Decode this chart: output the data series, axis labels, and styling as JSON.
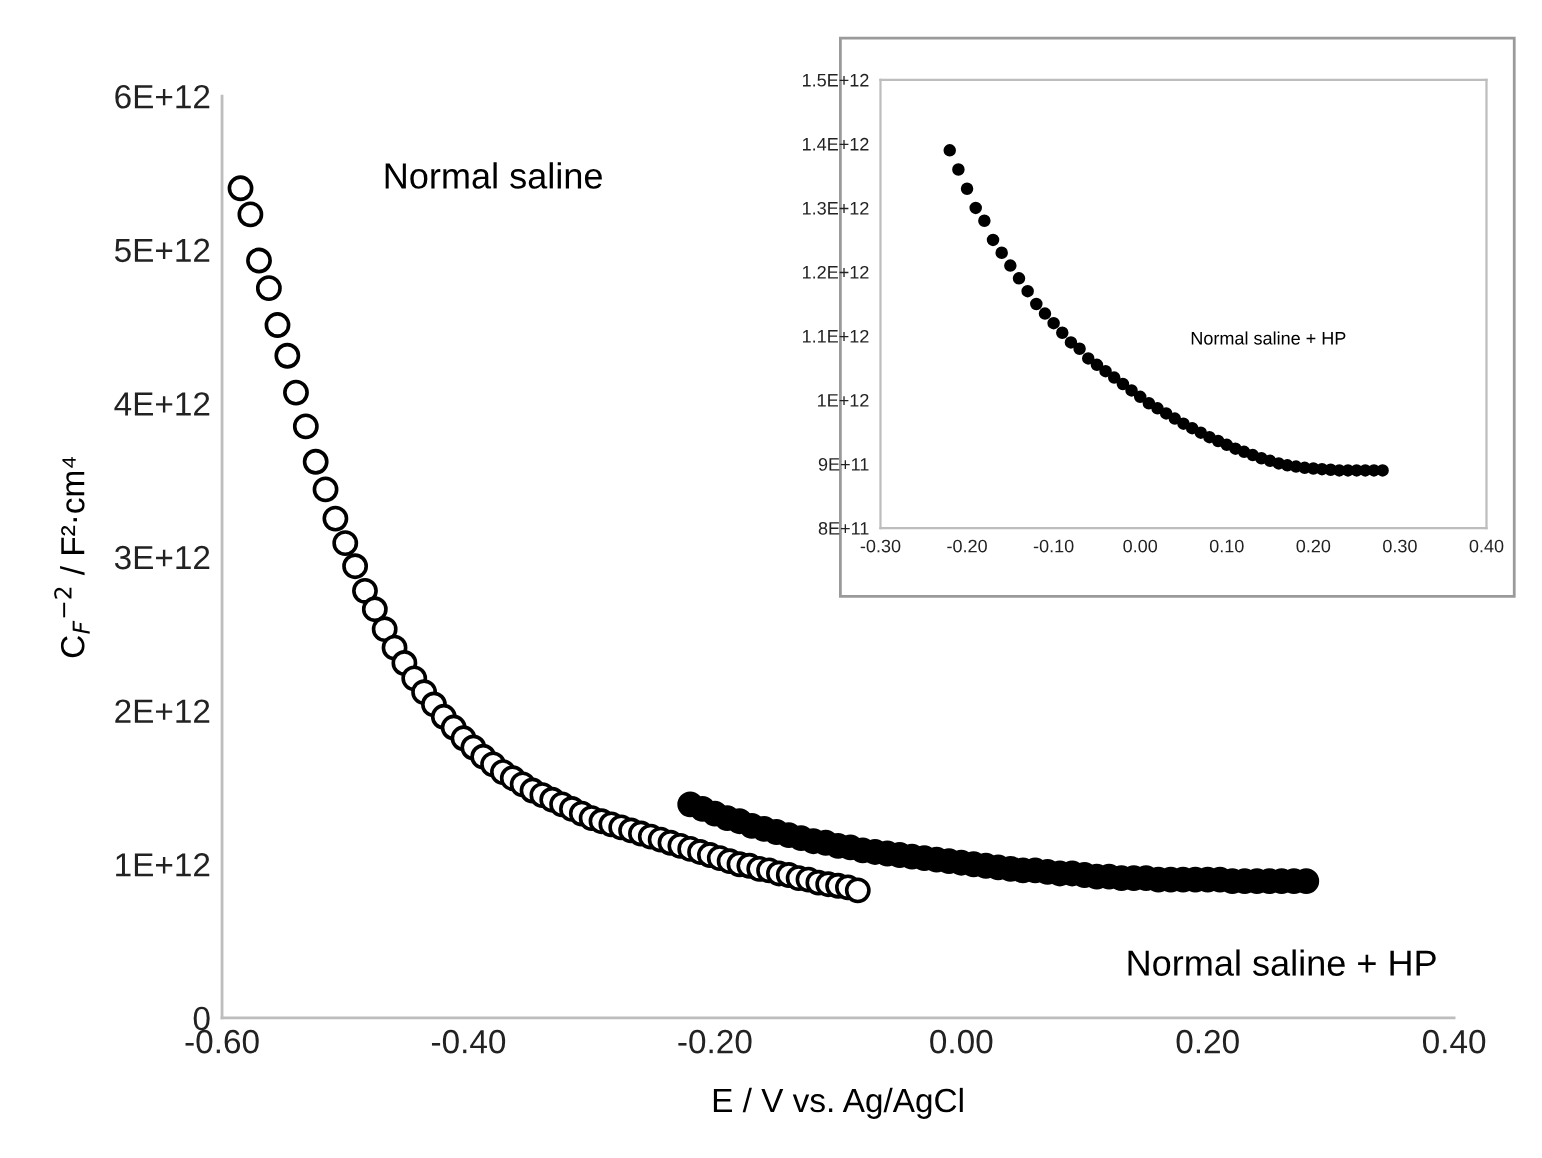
{
  "chart_data": [
    {
      "type": "scatter",
      "xlabel": "E / V vs. Ag/AgCl",
      "ylabel": "C$_{F}$$^{−2}$ / F²·cm⁴",
      "xlim": [
        -0.6,
        0.4
      ],
      "xticks": [
        {
          "value": -0.6,
          "label": "-0.60"
        },
        {
          "value": -0.4,
          "label": "-0.40"
        },
        {
          "value": -0.2,
          "label": "-0.20"
        },
        {
          "value": 0,
          "label": "0.00"
        },
        {
          "value": 0.2,
          "label": "0.20"
        },
        {
          "value": 0.4,
          "label": "0.40"
        }
      ],
      "ylim": [
        0,
        6000000000000.0
      ],
      "yticks": [
        0,
        {
          "value": 1000000000000.0,
          "label": "1E+12"
        },
        {
          "value": 2000000000000.0,
          "label": "2E+12"
        },
        {
          "value": 3000000000000.0,
          "label": "3E+12"
        },
        {
          "value": 4000000000000.0,
          "label": "4E+12"
        },
        {
          "value": 5000000000000.0,
          "label": "5E+12"
        },
        {
          "value": 6000000000000.0,
          "label": "6E+12"
        }
      ],
      "grid": false,
      "legend": false,
      "marker": "circle",
      "series": [
        {
          "color": "#ffffff",
          "x": [
            -0.585,
            -0.577,
            -0.57,
            -0.562,
            -0.555,
            -0.547,
            -0.54,
            -0.532,
            -0.524,
            -0.516,
            -0.508,
            -0.5,
            -0.492,
            -0.484,
            -0.476,
            -0.468,
            -0.46,
            -0.452,
            -0.444,
            -0.436,
            -0.428,
            -0.42,
            -0.412,
            -0.404,
            -0.396,
            -0.388,
            -0.38,
            -0.372,
            -0.364,
            -0.356,
            -0.348,
            -0.34,
            -0.332,
            -0.324,
            -0.316,
            -0.308,
            -0.3,
            -0.292,
            -0.284,
            -0.276,
            -0.268,
            -0.26,
            -0.252,
            -0.244,
            -0.236,
            -0.228,
            -0.22,
            -0.212,
            -0.204,
            -0.196,
            -0.188,
            -0.18,
            -0.172,
            -0.164,
            -0.156,
            -0.148,
            -0.14,
            -0.132,
            -0.124,
            -0.116,
            -0.108,
            -0.1,
            -0.092,
            -0.084
          ],
          "values": [
            5400000000000.0,
            5230000000000.0,
            4930000000000.0,
            4750000000000.0,
            4510000000000.0,
            4310000000000.0,
            4070000000000.0,
            3850000000000.0,
            3620000000000.0,
            3440000000000.0,
            3250000000000.0,
            3090000000000.0,
            2940000000000.0,
            2780000000000.0,
            2660000000000.0,
            2530000000000.0,
            2410000000000.0,
            2310000000000.0,
            2210000000000.0,
            2120000000000.0,
            2040000000000.0,
            1960000000000.0,
            1890000000000.0,
            1820000000000.0,
            1760000000000.0,
            1700000000000.0,
            1650000000000.0,
            1600000000000.0,
            1560000000000.0,
            1520000000000.0,
            1480000000000.0,
            1450000000000.0,
            1420000000000.0,
            1390000000000.0,
            1360000000000.0,
            1330000000000.0,
            1300000000000.0,
            1280000000000.0,
            1260000000000.0,
            1240000000000.0,
            1220000000000.0,
            1200000000000.0,
            1180000000000.0,
            1160000000000.0,
            1140000000000.0,
            1120000000000.0,
            1100000000000.0,
            1080000000000.0,
            1060000000000.0,
            1040000000000.0,
            1020000000000.0,
            1000000000000.0,
            990000000000.0,
            970000000000.0,
            960000000000.0,
            940000000000.0,
            930000000000.0,
            910000000000.0,
            900000000000.0,
            880000000000.0,
            870000000000.0,
            860000000000.0,
            850000000000.0,
            830000000000.0
          ]
        },
        {
          "color": "#000000",
          "x": [
            -0.22,
            -0.21,
            -0.2,
            -0.19,
            -0.18,
            -0.17,
            -0.16,
            -0.15,
            -0.14,
            -0.13,
            -0.12,
            -0.11,
            -0.1,
            -0.09,
            -0.08,
            -0.07,
            -0.06,
            -0.05,
            -0.04,
            -0.03,
            -0.02,
            -0.01,
            0,
            0.01,
            0.02,
            0.03,
            0.04,
            0.05,
            0.06,
            0.07,
            0.08,
            0.09,
            0.1,
            0.11,
            0.12,
            0.13,
            0.14,
            0.15,
            0.16,
            0.17,
            0.18,
            0.19,
            0.2,
            0.21,
            0.22,
            0.23,
            0.24,
            0.25,
            0.26,
            0.27,
            0.28
          ],
          "values": [
            1390000000000.0,
            1360000000000.0,
            1330000000000.0,
            1300000000000.0,
            1280000000000.0,
            1250000000000.0,
            1230000000000.0,
            1210000000000.0,
            1190000000000.0,
            1170000000000.0,
            1150000000000.0,
            1140000000000.0,
            1120000000000.0,
            1110000000000.0,
            1090000000000.0,
            1080000000000.0,
            1070000000000.0,
            1060000000000.0,
            1050000000000.0,
            1040000000000.0,
            1030000000000.0,
            1020000000000.0,
            1010000000000.0,
            1000000000000.0,
            990000000000.0,
            980000000000.0,
            970000000000.0,
            960000000000.0,
            960000000000.0,
            950000000000.0,
            940000000000.0,
            940000000000.0,
            930000000000.0,
            920000000000.0,
            920000000000.0,
            910000000000.0,
            910000000000.0,
            910000000000.0,
            900000000000.0,
            900000000000.0,
            900000000000.0,
            900000000000.0,
            900000000000.0,
            900000000000.0,
            890000000000.0,
            890000000000.0,
            890000000000.0,
            890000000000.0,
            890000000000.0,
            890000000000.0,
            890000000000.0
          ]
        }
      ],
      "annotations": [
        "Normal saline",
        "Normal saline + HP"
      ]
    },
    {
      "type": "scatter",
      "xlim": [
        -0.3,
        0.4
      ],
      "xticks": [
        {
          "value": -0.3,
          "label": "-0.30"
        },
        {
          "value": -0.2,
          "label": "-0.20"
        },
        {
          "value": -0.1,
          "label": "-0.10"
        },
        {
          "value": 0,
          "label": "0.00"
        },
        {
          "value": 0.1,
          "label": "0.10"
        },
        {
          "value": 0.2,
          "label": "0.20"
        },
        {
          "value": 0.3,
          "label": "0.30"
        },
        {
          "value": 0.4,
          "label": "0.40"
        }
      ],
      "ylim": [
        800000000000.0,
        1500000000000.0
      ],
      "yticks": [
        {
          "value": 800000000000.0,
          "label": "8E+11"
        },
        {
          "value": 900000000000.0,
          "label": "9E+11"
        },
        {
          "value": 1000000000000.0,
          "label": "1E+12"
        },
        {
          "value": 1100000000000.0,
          "label": "1.1E+12"
        },
        {
          "value": 1200000000000.0,
          "label": "1.2E+12"
        },
        {
          "value": 1300000000000.0,
          "label": "1.3E+12"
        },
        {
          "value": 1400000000000.0,
          "label": "1.4E+12"
        },
        {
          "value": 1500000000000.0,
          "label": "1.5E+12"
        }
      ],
      "grid": false,
      "legend": false,
      "marker": "circle",
      "series": [
        {
          "color": "#000000",
          "x": [
            -0.22,
            -0.21,
            -0.2,
            -0.19,
            -0.18,
            -0.17,
            -0.16,
            -0.15,
            -0.14,
            -0.13,
            -0.12,
            -0.11,
            -0.1,
            -0.09,
            -0.08,
            -0.07,
            -0.06,
            -0.05,
            -0.04,
            -0.03,
            -0.02,
            -0.01,
            0,
            0.01,
            0.02,
            0.03,
            0.04,
            0.05,
            0.06,
            0.07,
            0.08,
            0.09,
            0.1,
            0.11,
            0.12,
            0.13,
            0.14,
            0.15,
            0.16,
            0.17,
            0.18,
            0.19,
            0.2,
            0.21,
            0.22,
            0.23,
            0.24,
            0.25,
            0.26,
            0.27,
            0.28
          ],
          "values": [
            1390000000000.0,
            1360000000000.0,
            1330000000000.0,
            1300000000000.0,
            1280000000000.0,
            1250000000000.0,
            1230000000000.0,
            1210000000000.0,
            1190000000000.0,
            1170000000000.0,
            1150000000000.0,
            1135000000000.0,
            1120000000000.0,
            1105000000000.0,
            1090000000000.0,
            1080000000000.0,
            1065000000000.0,
            1055000000000.0,
            1045000000000.0,
            1035000000000.0,
            1025000000000.0,
            1015000000000.0,
            1005000000000.0,
            995000000000.0,
            987000000000.0,
            979000000000.0,
            971000000000.0,
            963000000000.0,
            956000000000.0,
            949000000000.0,
            942000000000.0,
            936000000000.0,
            930000000000.0,
            924000000000.0,
            919000000000.0,
            914000000000.0,
            909000000000.0,
            905000000000.0,
            901000000000.0,
            898000000000.0,
            896000000000.0,
            894000000000.0,
            893000000000.0,
            892000000000.0,
            891000000000.0,
            890000000000.0,
            890000000000.0,
            890000000000.0,
            890000000000.0,
            890000000000.0,
            890000000000.0
          ]
        }
      ],
      "annotations": [
        "Normal saline + HP"
      ]
    }
  ]
}
